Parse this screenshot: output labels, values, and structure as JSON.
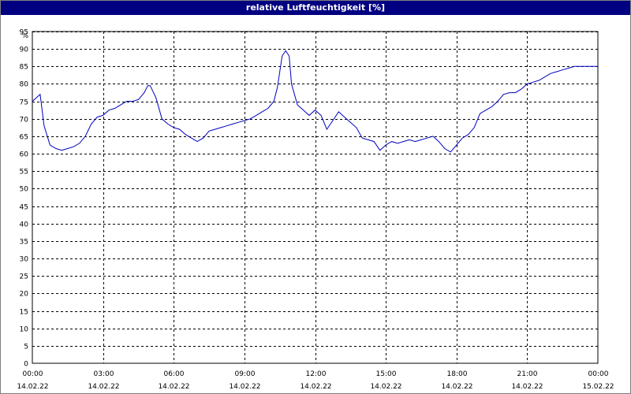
{
  "window": {
    "title": "relative Luftfeuchtigkeit [%]"
  },
  "chart_data": {
    "type": "line",
    "title": "relative Luftfeuchtigkeit [%]",
    "ylabel": "%",
    "xlabel": "",
    "ylim": [
      0,
      95
    ],
    "yticks": [
      0,
      5,
      10,
      15,
      20,
      25,
      30,
      35,
      40,
      45,
      50,
      55,
      60,
      65,
      70,
      75,
      80,
      85,
      90,
      95
    ],
    "xlim": [
      0,
      24
    ],
    "xticks": [
      {
        "time": "00:00",
        "date": "14.02.22"
      },
      {
        "time": "03:00",
        "date": "14.02.22"
      },
      {
        "time": "06:00",
        "date": "14.02.22"
      },
      {
        "time": "09:00",
        "date": "14.02.22"
      },
      {
        "time": "12:00",
        "date": "14.02.22"
      },
      {
        "time": "15:00",
        "date": "14.02.22"
      },
      {
        "time": "18:00",
        "date": "14.02.22"
      },
      {
        "time": "21:00",
        "date": "14.02.22"
      },
      {
        "time": "00:00",
        "date": "15.02.22"
      }
    ],
    "grid": true,
    "line_color": "#0000c0",
    "series": [
      {
        "x": [
          0.0,
          0.33,
          0.5,
          0.75,
          1.0,
          1.25,
          1.5,
          1.75,
          2.0,
          2.25,
          2.5,
          2.75,
          3.0,
          3.25,
          3.5,
          3.75,
          4.0,
          4.25,
          4.5,
          4.75,
          4.9,
          5.0,
          5.25,
          5.5,
          5.75,
          6.0,
          6.25,
          6.5,
          6.75,
          7.0,
          7.25,
          7.5,
          7.75,
          8.0,
          8.25,
          8.5,
          8.75,
          9.0,
          9.25,
          9.5,
          9.75,
          10.0,
          10.25,
          10.4,
          10.6,
          10.75,
          10.9,
          11.0,
          11.25,
          11.5,
          11.75,
          12.0,
          12.25,
          12.5,
          12.75,
          13.0,
          13.25,
          13.5,
          13.75,
          14.0,
          14.25,
          14.5,
          14.75,
          15.0,
          15.25,
          15.5,
          15.75,
          16.0,
          16.25,
          16.5,
          16.75,
          17.0,
          17.25,
          17.5,
          17.75,
          18.0,
          18.25,
          18.5,
          18.75,
          19.0,
          19.25,
          19.5,
          19.75,
          20.0,
          20.25,
          20.5,
          20.75,
          21.0,
          21.25,
          21.5,
          21.75,
          22.0,
          22.25,
          22.5,
          22.75,
          23.0,
          23.25,
          23.5,
          23.75,
          24.0
        ],
        "y": [
          75,
          77,
          68,
          62.5,
          61.5,
          61,
          61.5,
          62,
          63,
          65,
          68.5,
          70.5,
          71,
          72.5,
          73,
          74,
          75,
          75,
          75.5,
          77.5,
          79.5,
          79.5,
          76,
          70,
          68.5,
          67.5,
          67,
          65.5,
          64.5,
          63.5,
          64.5,
          66.5,
          67,
          67.5,
          68,
          68.5,
          69,
          69.5,
          70,
          71,
          72,
          73,
          75,
          79,
          88,
          89.5,
          88,
          80,
          74,
          72.5,
          71,
          72.5,
          71,
          67,
          69.5,
          72,
          70.5,
          69,
          67.5,
          64.5,
          64,
          63.5,
          61,
          62.5,
          63.5,
          63,
          63.5,
          64,
          63.5,
          64,
          64.5,
          65,
          63.5,
          61.5,
          60.5,
          62.5,
          64.5,
          65.5,
          67.5,
          71.5,
          72.5,
          73.5,
          75,
          77,
          77.5,
          77.5,
          78.5,
          80,
          80.5,
          81,
          82,
          83,
          83.5,
          84,
          84.5,
          85,
          85,
          85,
          85,
          85
        ]
      }
    ]
  }
}
